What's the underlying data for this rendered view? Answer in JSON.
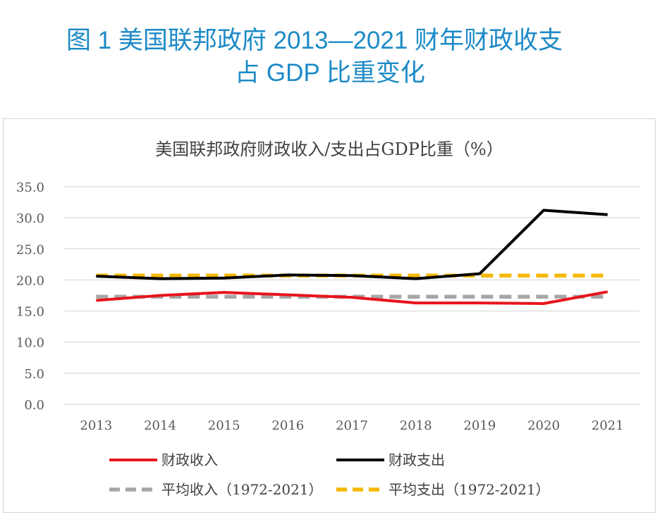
{
  "figure": {
    "title_line1": "图 1  美国联邦政府 2013—2021 财年财政收支",
    "title_line2": "占 GDP 比重变化"
  },
  "chart_data": {
    "type": "line",
    "title": "美国联邦政府财政收入/支出占GDP比重（%）",
    "xlabel": "",
    "ylabel": "",
    "categories": [
      "2013",
      "2014",
      "2015",
      "2016",
      "2017",
      "2018",
      "2019",
      "2020",
      "2021"
    ],
    "ylim": [
      0,
      35
    ],
    "yticks": [
      "0.0",
      "5.0",
      "10.0",
      "15.0",
      "20.0",
      "25.0",
      "30.0",
      "35.0"
    ],
    "grid": true,
    "legend_position": "bottom",
    "series": [
      {
        "name": "财政收入",
        "style": "solid",
        "color": "#e8141c",
        "values": [
          16.7,
          17.5,
          18.0,
          17.6,
          17.2,
          16.3,
          16.3,
          16.2,
          18.1
        ]
      },
      {
        "name": "财政支出",
        "style": "solid",
        "color": "#000000",
        "values": [
          20.6,
          20.2,
          20.3,
          20.8,
          20.7,
          20.2,
          21.0,
          31.2,
          30.5
        ]
      },
      {
        "name": "平均收入（1972-2021）",
        "style": "dashed",
        "color": "#a6a6a6",
        "values": [
          17.3,
          17.3,
          17.3,
          17.3,
          17.3,
          17.3,
          17.3,
          17.3,
          17.3
        ]
      },
      {
        "name": "平均支出（1972-2021）",
        "style": "dashed",
        "color": "#f5b800",
        "values": [
          20.7,
          20.7,
          20.7,
          20.7,
          20.7,
          20.7,
          20.7,
          20.7,
          20.7
        ]
      }
    ]
  }
}
